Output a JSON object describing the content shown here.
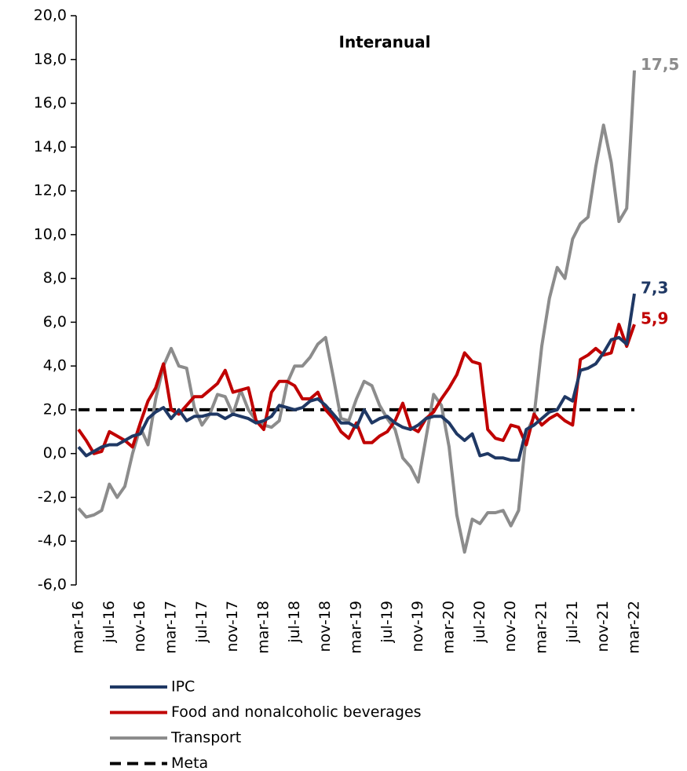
{
  "chart_data": {
    "type": "line",
    "title": "Interanual",
    "categories": [
      "mar-16",
      null,
      null,
      null,
      "jul-16",
      null,
      null,
      null,
      "nov-16",
      null,
      null,
      null,
      "mar-17",
      null,
      null,
      null,
      "jul-17",
      null,
      null,
      null,
      "nov-17",
      null,
      null,
      null,
      "mar-18",
      null,
      null,
      null,
      "jul-18",
      null,
      null,
      null,
      "nov-18",
      null,
      null,
      null,
      "mar-19",
      null,
      null,
      null,
      "jul-19",
      null,
      null,
      null,
      "nov-19",
      null,
      null,
      null,
      "mar-20",
      null,
      null,
      null,
      "jul-20",
      null,
      null,
      null,
      "nov-20",
      null,
      null,
      null,
      "mar-21",
      null,
      null,
      null,
      "jul-21",
      null,
      null,
      null,
      "nov-21",
      null,
      null,
      null,
      "mar-22"
    ],
    "series": [
      {
        "name": "IPC",
        "color": "#1f3864",
        "values": [
          0.3,
          -0.1,
          0.1,
          0.3,
          0.4,
          0.4,
          0.6,
          0.8,
          0.9,
          1.6,
          1.9,
          2.1,
          1.6,
          2.0,
          1.5,
          1.7,
          1.7,
          1.8,
          1.8,
          1.6,
          1.8,
          1.7,
          1.6,
          1.4,
          1.5,
          1.7,
          2.2,
          2.1,
          2.0,
          2.1,
          2.4,
          2.5,
          2.2,
          1.8,
          1.4,
          1.4,
          1.2,
          2.0,
          1.4,
          1.6,
          1.7,
          1.4,
          1.2,
          1.1,
          1.3,
          1.6,
          1.7,
          1.7,
          1.4,
          0.9,
          0.6,
          0.9,
          -0.1,
          0.0,
          -0.2,
          -0.2,
          -0.3,
          -0.3,
          1.1,
          1.3,
          1.6,
          1.9,
          2.0,
          2.6,
          2.4,
          3.8,
          3.9,
          4.1,
          4.6,
          5.2,
          5.3,
          5.0,
          7.3
        ],
        "value_labels": {
          "72": "7,3"
        }
      },
      {
        "name": "Food and nonalcoholic beverages",
        "color": "#c00000",
        "values": [
          1.1,
          0.6,
          0.0,
          0.1,
          1.0,
          0.8,
          0.6,
          0.3,
          1.4,
          2.4,
          3.0,
          4.1,
          2.0,
          1.8,
          2.2,
          2.6,
          2.6,
          2.9,
          3.2,
          3.8,
          2.8,
          2.9,
          3.0,
          1.5,
          1.1,
          2.8,
          3.3,
          3.3,
          3.1,
          2.5,
          2.5,
          2.8,
          2.0,
          1.6,
          1.0,
          0.7,
          1.4,
          0.5,
          0.5,
          0.8,
          1.0,
          1.5,
          2.3,
          1.2,
          1.0,
          1.6,
          1.9,
          2.5,
          3.0,
          3.6,
          4.6,
          4.2,
          4.1,
          1.1,
          0.7,
          0.6,
          1.3,
          1.2,
          0.4,
          1.8,
          1.3,
          1.6,
          1.8,
          1.5,
          1.3,
          4.3,
          4.5,
          4.8,
          4.5,
          4.6,
          5.9,
          4.9,
          5.9
        ],
        "value_labels": {
          "72": "5,9"
        }
      },
      {
        "name": "Transport",
        "color": "#8c8c8c",
        "values": [
          -2.5,
          -2.9,
          -2.8,
          -2.6,
          -1.4,
          -2.0,
          -1.5,
          0.0,
          1.2,
          0.4,
          2.5,
          4.0,
          4.8,
          4.0,
          3.9,
          2.1,
          1.3,
          1.8,
          2.7,
          2.6,
          1.8,
          2.9,
          2.0,
          1.5,
          1.3,
          1.2,
          1.5,
          3.2,
          4.0,
          4.0,
          4.4,
          5.0,
          5.3,
          3.5,
          1.6,
          1.5,
          2.5,
          3.3,
          3.1,
          2.2,
          1.6,
          1.1,
          -0.2,
          -0.6,
          -1.3,
          0.7,
          2.7,
          2.2,
          0.3,
          -2.8,
          -4.5,
          -3.0,
          -3.2,
          -2.7,
          -2.7,
          -2.6,
          -3.3,
          -2.6,
          0.9,
          1.7,
          4.9,
          7.1,
          8.5,
          8.0,
          9.8,
          10.5,
          10.8,
          13.1,
          15.0,
          13.3,
          10.6,
          11.2,
          17.5
        ],
        "value_labels": {
          "72": "17,5"
        }
      }
    ],
    "reference_lines": [
      {
        "name": "Meta",
        "value": 2,
        "color": "#000000",
        "dash": true
      }
    ],
    "ylim": [
      -6,
      20
    ],
    "yticks": [
      {
        "value": -6,
        "label": "-6,0"
      },
      {
        "value": -4,
        "label": "-4,0"
      },
      {
        "value": -2,
        "label": "-2,0"
      },
      {
        "value": 0,
        "label": "0,0"
      },
      {
        "value": 2,
        "label": "2,0"
      },
      {
        "value": 4,
        "label": "4,0"
      },
      {
        "value": 6,
        "label": "6,0"
      },
      {
        "value": 8,
        "label": "8,0"
      },
      {
        "value": 10,
        "label": "10,0"
      },
      {
        "value": 12,
        "label": "12,0"
      },
      {
        "value": 14,
        "label": "14,0"
      },
      {
        "value": 16,
        "label": "16,0"
      },
      {
        "value": 18,
        "label": "18,0"
      },
      {
        "value": 20,
        "label": "20,0"
      }
    ],
    "grid": false,
    "legend": "bottom"
  }
}
